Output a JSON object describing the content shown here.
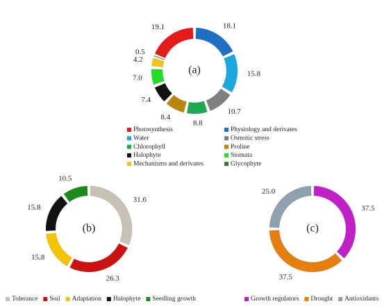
{
  "chart_data": [
    {
      "type": "donut",
      "center_label": "(a)",
      "categories": [
        "Photosynthesis",
        "Physiology and derivates",
        "Water",
        "Osmotic stress",
        "Chlorophyll",
        "Proline",
        "Halophyte",
        "Stomata",
        "Mechanisms and derivates",
        "Glycophyte"
      ],
      "values": [
        19.1,
        18.1,
        15.8,
        10.7,
        8.8,
        8.4,
        7.4,
        7,
        4.2,
        0.5
      ],
      "value_labels": [
        "19.1",
        "18.1",
        "15.8",
        "10.7",
        "8.8",
        "8.4",
        "7.4",
        "7.0",
        "4.2",
        "0.5"
      ],
      "colors": [
        "#e31b1b",
        "#1f6fc4",
        "#1ba7e0",
        "#7f7f7f",
        "#1ea84f",
        "#b8860b",
        "#111111",
        "#22dd22",
        "#f2c31a",
        "#2e7d32"
      ],
      "legend": "bottom"
    },
    {
      "type": "donut",
      "center_label": "(b)",
      "categories": [
        "Tolerance",
        "Soil",
        "Adaptation",
        "Halophyte",
        "Seedling growth"
      ],
      "values": [
        31.6,
        26.3,
        15.8,
        15.8,
        10.5
      ],
      "value_labels": [
        "31.6",
        "26.3",
        "15.8",
        "15.8",
        "10.5"
      ],
      "colors": [
        "#c8c2b6",
        "#cc1111",
        "#f5c400",
        "#111111",
        "#1a8a1a"
      ],
      "legend": "bottom"
    },
    {
      "type": "donut",
      "center_label": "(c)",
      "categories": [
        "Growth regulators",
        "Drought",
        "Antioxidants"
      ],
      "values": [
        37.5,
        37.5,
        25
      ],
      "value_labels": [
        "37.5",
        "37.5",
        "25.0"
      ],
      "colors": [
        "#c020c8",
        "#e67e0d",
        "#8fa0ae"
      ],
      "legend": "bottom"
    }
  ]
}
